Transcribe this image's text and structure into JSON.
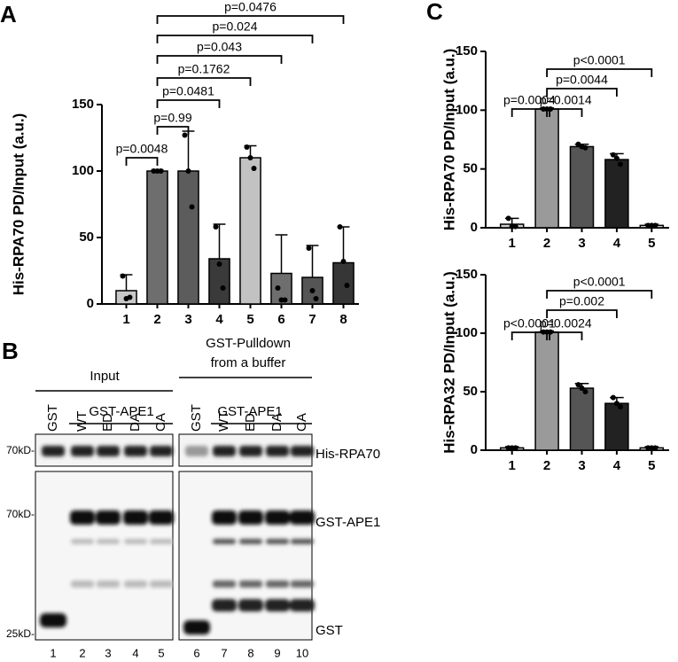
{
  "chart_data": [
    {
      "type": "bar",
      "panel": "A",
      "ylabel": "His-RPA70 PD/Input (a.u.)",
      "categories": [
        "1",
        "2",
        "3",
        "4",
        "5",
        "6",
        "7",
        "8"
      ],
      "values": [
        10,
        100,
        100,
        34,
        110,
        23,
        20,
        31
      ],
      "errors": [
        12,
        1,
        30,
        26,
        9,
        29,
        24,
        27
      ],
      "points": [
        [
          21,
          4,
          5
        ],
        [
          100,
          100,
          100
        ],
        [
          127,
          100,
          73
        ],
        [
          58,
          30,
          12
        ],
        [
          118,
          110,
          102
        ],
        [
          12,
          3,
          3
        ],
        [
          42,
          10,
          4
        ],
        [
          58,
          32,
          14
        ]
      ],
      "colors": [
        "#c9c9c9",
        "#6e6e6e",
        "#5c5c5c",
        "#3a3a3a",
        "#c2c2c2",
        "#6e6e6e",
        "#555555",
        "#363636"
      ],
      "ylim": [
        0,
        150
      ],
      "yticks": [
        0,
        50,
        100,
        150
      ],
      "brackets": [
        {
          "from": 0,
          "to": 1,
          "label": "p=0.0048"
        },
        {
          "from": 1,
          "to": 2,
          "label": "p=0.99"
        },
        {
          "from": 1,
          "to": 3,
          "label": "p=0.0481"
        },
        {
          "from": 1,
          "to": 4,
          "label": "p=0.1762"
        },
        {
          "from": 1,
          "to": 5,
          "label": "p=0.043"
        },
        {
          "from": 1,
          "to": 6,
          "label": "p=0.024"
        },
        {
          "from": 1,
          "to": 7,
          "label": "p=0.0476"
        }
      ]
    },
    {
      "type": "bar",
      "panel": "C",
      "ylabel": "His-RPA70 PD/Input (a.u.)",
      "categories": [
        "1",
        "2",
        "3",
        "4",
        "5"
      ],
      "values": [
        3,
        101,
        69,
        58,
        2
      ],
      "errors": [
        5,
        1,
        2,
        5,
        1
      ],
      "points": [
        [
          8,
          1,
          1
        ],
        [
          101,
          101,
          101
        ],
        [
          71,
          69,
          68
        ],
        [
          62,
          59,
          54
        ],
        [
          2,
          2,
          2
        ]
      ],
      "colors": [
        "#cfcfcf",
        "#9a9a9a",
        "#555555",
        "#222222",
        "#dddddd"
      ],
      "ylim": [
        0,
        150
      ],
      "yticks": [
        0,
        50,
        100,
        150
      ],
      "brackets": [
        {
          "from": 0,
          "to": 1,
          "label": "p=0.0004"
        },
        {
          "from": 1,
          "to": 2,
          "label": "p=0.0014"
        },
        {
          "from": 1,
          "to": 3,
          "label": "p=0.0044"
        },
        {
          "from": 1,
          "to": 4,
          "label": "p<0.0001"
        }
      ]
    },
    {
      "type": "bar",
      "ylabel": "His-RPA32 PD/Input (a.u.)",
      "categories": [
        "1",
        "2",
        "3",
        "4",
        "5"
      ],
      "values": [
        2,
        101,
        53,
        40,
        2
      ],
      "errors": [
        1,
        1,
        4,
        5,
        1
      ],
      "points": [
        [
          2,
          2,
          2
        ],
        [
          101,
          101,
          101
        ],
        [
          56,
          53,
          50
        ],
        [
          45,
          40,
          37
        ],
        [
          2,
          2,
          2
        ]
      ],
      "colors": [
        "#cfcfcf",
        "#9a9a9a",
        "#555555",
        "#222222",
        "#dddddd"
      ],
      "ylim": [
        0,
        150
      ],
      "yticks": [
        0,
        50,
        100,
        150
      ],
      "brackets": [
        {
          "from": 0,
          "to": 1,
          "label": "p<0.0001"
        },
        {
          "from": 1,
          "to": 2,
          "label": "p=0.0024"
        },
        {
          "from": 1,
          "to": 3,
          "label": "p=0.002"
        },
        {
          "from": 1,
          "to": 4,
          "label": "p<0.0001"
        }
      ]
    }
  ],
  "blot": {
    "panel": "B",
    "input": "Input",
    "pulldown": "GST-Pulldown",
    "pulldown_sub": "from a buffer",
    "group_left": "GST-APE1",
    "group_right": "GST-APE1",
    "lanes_left": [
      "GST",
      "WT",
      "ED",
      "DA",
      "CA"
    ],
    "lanes_right": [
      "GST",
      "WT",
      "ED",
      "DA",
      "CA"
    ],
    "markers": [
      "70kD-",
      "70kD-",
      "25kD-"
    ],
    "bands": [
      "His-RPA70",
      "GST-APE1",
      "GST"
    ],
    "lane_numbers": [
      "1",
      "2",
      "3",
      "4",
      "5",
      "6",
      "7",
      "8",
      "9",
      "10"
    ]
  }
}
